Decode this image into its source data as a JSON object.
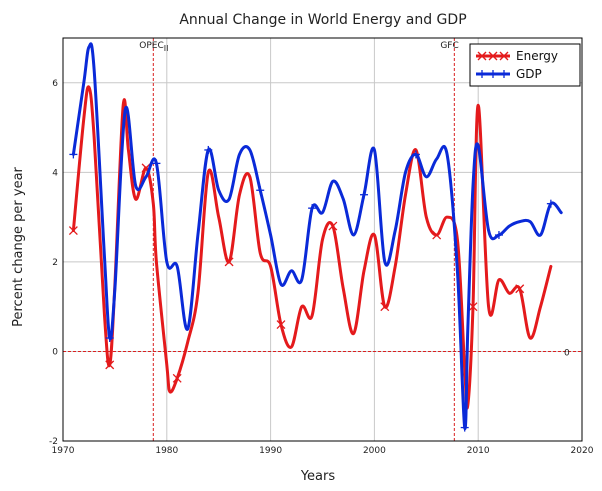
{
  "chart_data": {
    "type": "line",
    "title": "Annual Change in World Energy and GDP",
    "xlabel": "Years",
    "ylabel": "Percent change per year",
    "xlim": [
      1970,
      2020
    ],
    "ylim": [
      -2,
      7
    ],
    "x_ticks": [
      1970,
      1980,
      1990,
      2000,
      2010,
      2020
    ],
    "y_ticks": [
      -2,
      0,
      2,
      4,
      6
    ],
    "grid": true,
    "legend_position": "top-right",
    "reference_lines": [
      {
        "type": "vertical",
        "x": 1978.7,
        "label": "OPEC",
        "sublabel": "II"
      },
      {
        "type": "vertical",
        "x": 2007.7,
        "label": "GFC",
        "sublabel": ""
      },
      {
        "type": "horizontal",
        "y": 0,
        "label": "0"
      }
    ],
    "series": [
      {
        "name": "Energy",
        "color": "#e41a1c",
        "marker": "x",
        "x": [
          1971,
          1972,
          1972.5,
          1973,
          1974,
          1974.5,
          1975,
          1975.8,
          1976.3,
          1977,
          1978,
          1978.7,
          1979,
          1980,
          1980.3,
          1981,
          1982,
          1983,
          1984,
          1985,
          1986,
          1987,
          1988,
          1989,
          1990,
          1991,
          1992,
          1993,
          1994,
          1995,
          1996,
          1997,
          1998,
          1999,
          2000,
          2001,
          2002,
          2003,
          2004,
          2005,
          2006,
          2007,
          2008,
          2008.7,
          2009,
          2009.5,
          2010,
          2011,
          2012,
          2013,
          2014,
          2015,
          2016,
          2017
        ],
        "y": [
          2.7,
          5.2,
          5.9,
          4.8,
          0.8,
          -0.3,
          1.5,
          5.5,
          4.5,
          3.4,
          4.1,
          3.3,
          2.0,
          -0.3,
          -0.9,
          -0.6,
          0.2,
          1.3,
          4.0,
          3.0,
          2.0,
          3.5,
          3.9,
          2.2,
          1.9,
          0.6,
          0.1,
          1.0,
          0.8,
          2.5,
          2.8,
          1.4,
          0.4,
          1.8,
          2.6,
          1.0,
          1.9,
          3.5,
          4.5,
          3.0,
          2.6,
          3.0,
          2.5,
          -0.4,
          -1.2,
          1.0,
          5.5,
          1.0,
          1.6,
          1.3,
          1.4,
          0.3,
          1.0,
          1.9
        ]
      },
      {
        "name": "GDP",
        "color": "#0a2ad8",
        "marker": "+",
        "x": [
          1971,
          1972,
          1972.5,
          1973,
          1974,
          1974.5,
          1975,
          1976,
          1977,
          1978,
          1979,
          1980,
          1981,
          1982,
          1983,
          1984,
          1985,
          1986,
          1987,
          1988,
          1989,
          1990,
          1991,
          1992,
          1993,
          1994,
          1995,
          1996,
          1997,
          1998,
          1999,
          2000,
          2001,
          2002,
          2003,
          2004,
          2005,
          2006,
          2007,
          2008,
          2008.7,
          2009,
          2009.5,
          2010,
          2011,
          2012,
          2013,
          2014,
          2015,
          2016,
          2017,
          2018
        ],
        "y": [
          4.4,
          6.0,
          6.8,
          6.3,
          2.1,
          0.3,
          1.4,
          5.4,
          3.7,
          3.9,
          4.2,
          2.0,
          1.9,
          0.5,
          2.6,
          4.5,
          3.6,
          3.4,
          4.4,
          4.5,
          3.6,
          2.6,
          1.5,
          1.8,
          1.6,
          3.2,
          3.1,
          3.8,
          3.4,
          2.6,
          3.5,
          4.5,
          2.0,
          2.7,
          4.0,
          4.4,
          3.9,
          4.3,
          4.4,
          1.8,
          -1.7,
          0.5,
          3.7,
          4.6,
          2.7,
          2.6,
          2.8,
          2.9,
          2.9,
          2.6,
          3.3,
          3.1
        ]
      }
    ]
  }
}
